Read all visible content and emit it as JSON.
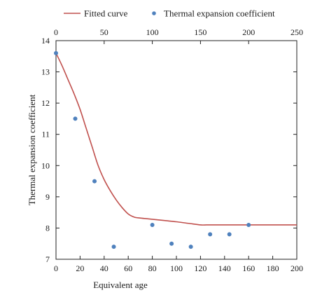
{
  "chart_data": {
    "type": "scatter",
    "xlabel": "Equivalent age",
    "ylabel": "Thermal expansion coefficient",
    "xlim": [
      0,
      200
    ],
    "ylim": [
      7,
      14
    ],
    "x_ticks": [
      0,
      20,
      40,
      60,
      80,
      100,
      120,
      140,
      160,
      180,
      200
    ],
    "y_ticks": [
      7,
      8,
      9,
      10,
      11,
      12,
      13,
      14
    ],
    "secondary_x_axis": {
      "position": "top",
      "xlim": [
        0,
        250
      ],
      "ticks": [
        0,
        50,
        100,
        150,
        200,
        250
      ]
    },
    "grid": false,
    "legend": {
      "placement": "top",
      "entries": [
        "Fitted curve",
        "Thermal expansion coefficient"
      ]
    },
    "series": [
      {
        "name": "Fitted curve",
        "kind": "line",
        "color": "#c0504d",
        "x": [
          0,
          5,
          10,
          15,
          20,
          25,
          30,
          35,
          40,
          45,
          50,
          55,
          60,
          65,
          70,
          75,
          80,
          90,
          100,
          110,
          120,
          125,
          130,
          140,
          150,
          160,
          170,
          180,
          190,
          200
        ],
        "y": [
          13.6,
          13.2,
          12.75,
          12.3,
          11.8,
          11.2,
          10.6,
          10.0,
          9.55,
          9.2,
          8.9,
          8.65,
          8.45,
          8.35,
          8.32,
          8.3,
          8.28,
          8.24,
          8.2,
          8.15,
          8.1,
          8.1,
          8.1,
          8.1,
          8.1,
          8.1,
          8.1,
          8.1,
          8.1,
          8.1
        ]
      },
      {
        "name": "Thermal expansion coefficient",
        "kind": "scatter",
        "color": "#4f81bd",
        "x": [
          0,
          16,
          32,
          48,
          80,
          96,
          112,
          128,
          144,
          160
        ],
        "y": [
          13.6,
          11.5,
          9.5,
          7.4,
          8.1,
          7.5,
          7.4,
          7.8,
          7.8,
          8.1
        ]
      }
    ]
  }
}
